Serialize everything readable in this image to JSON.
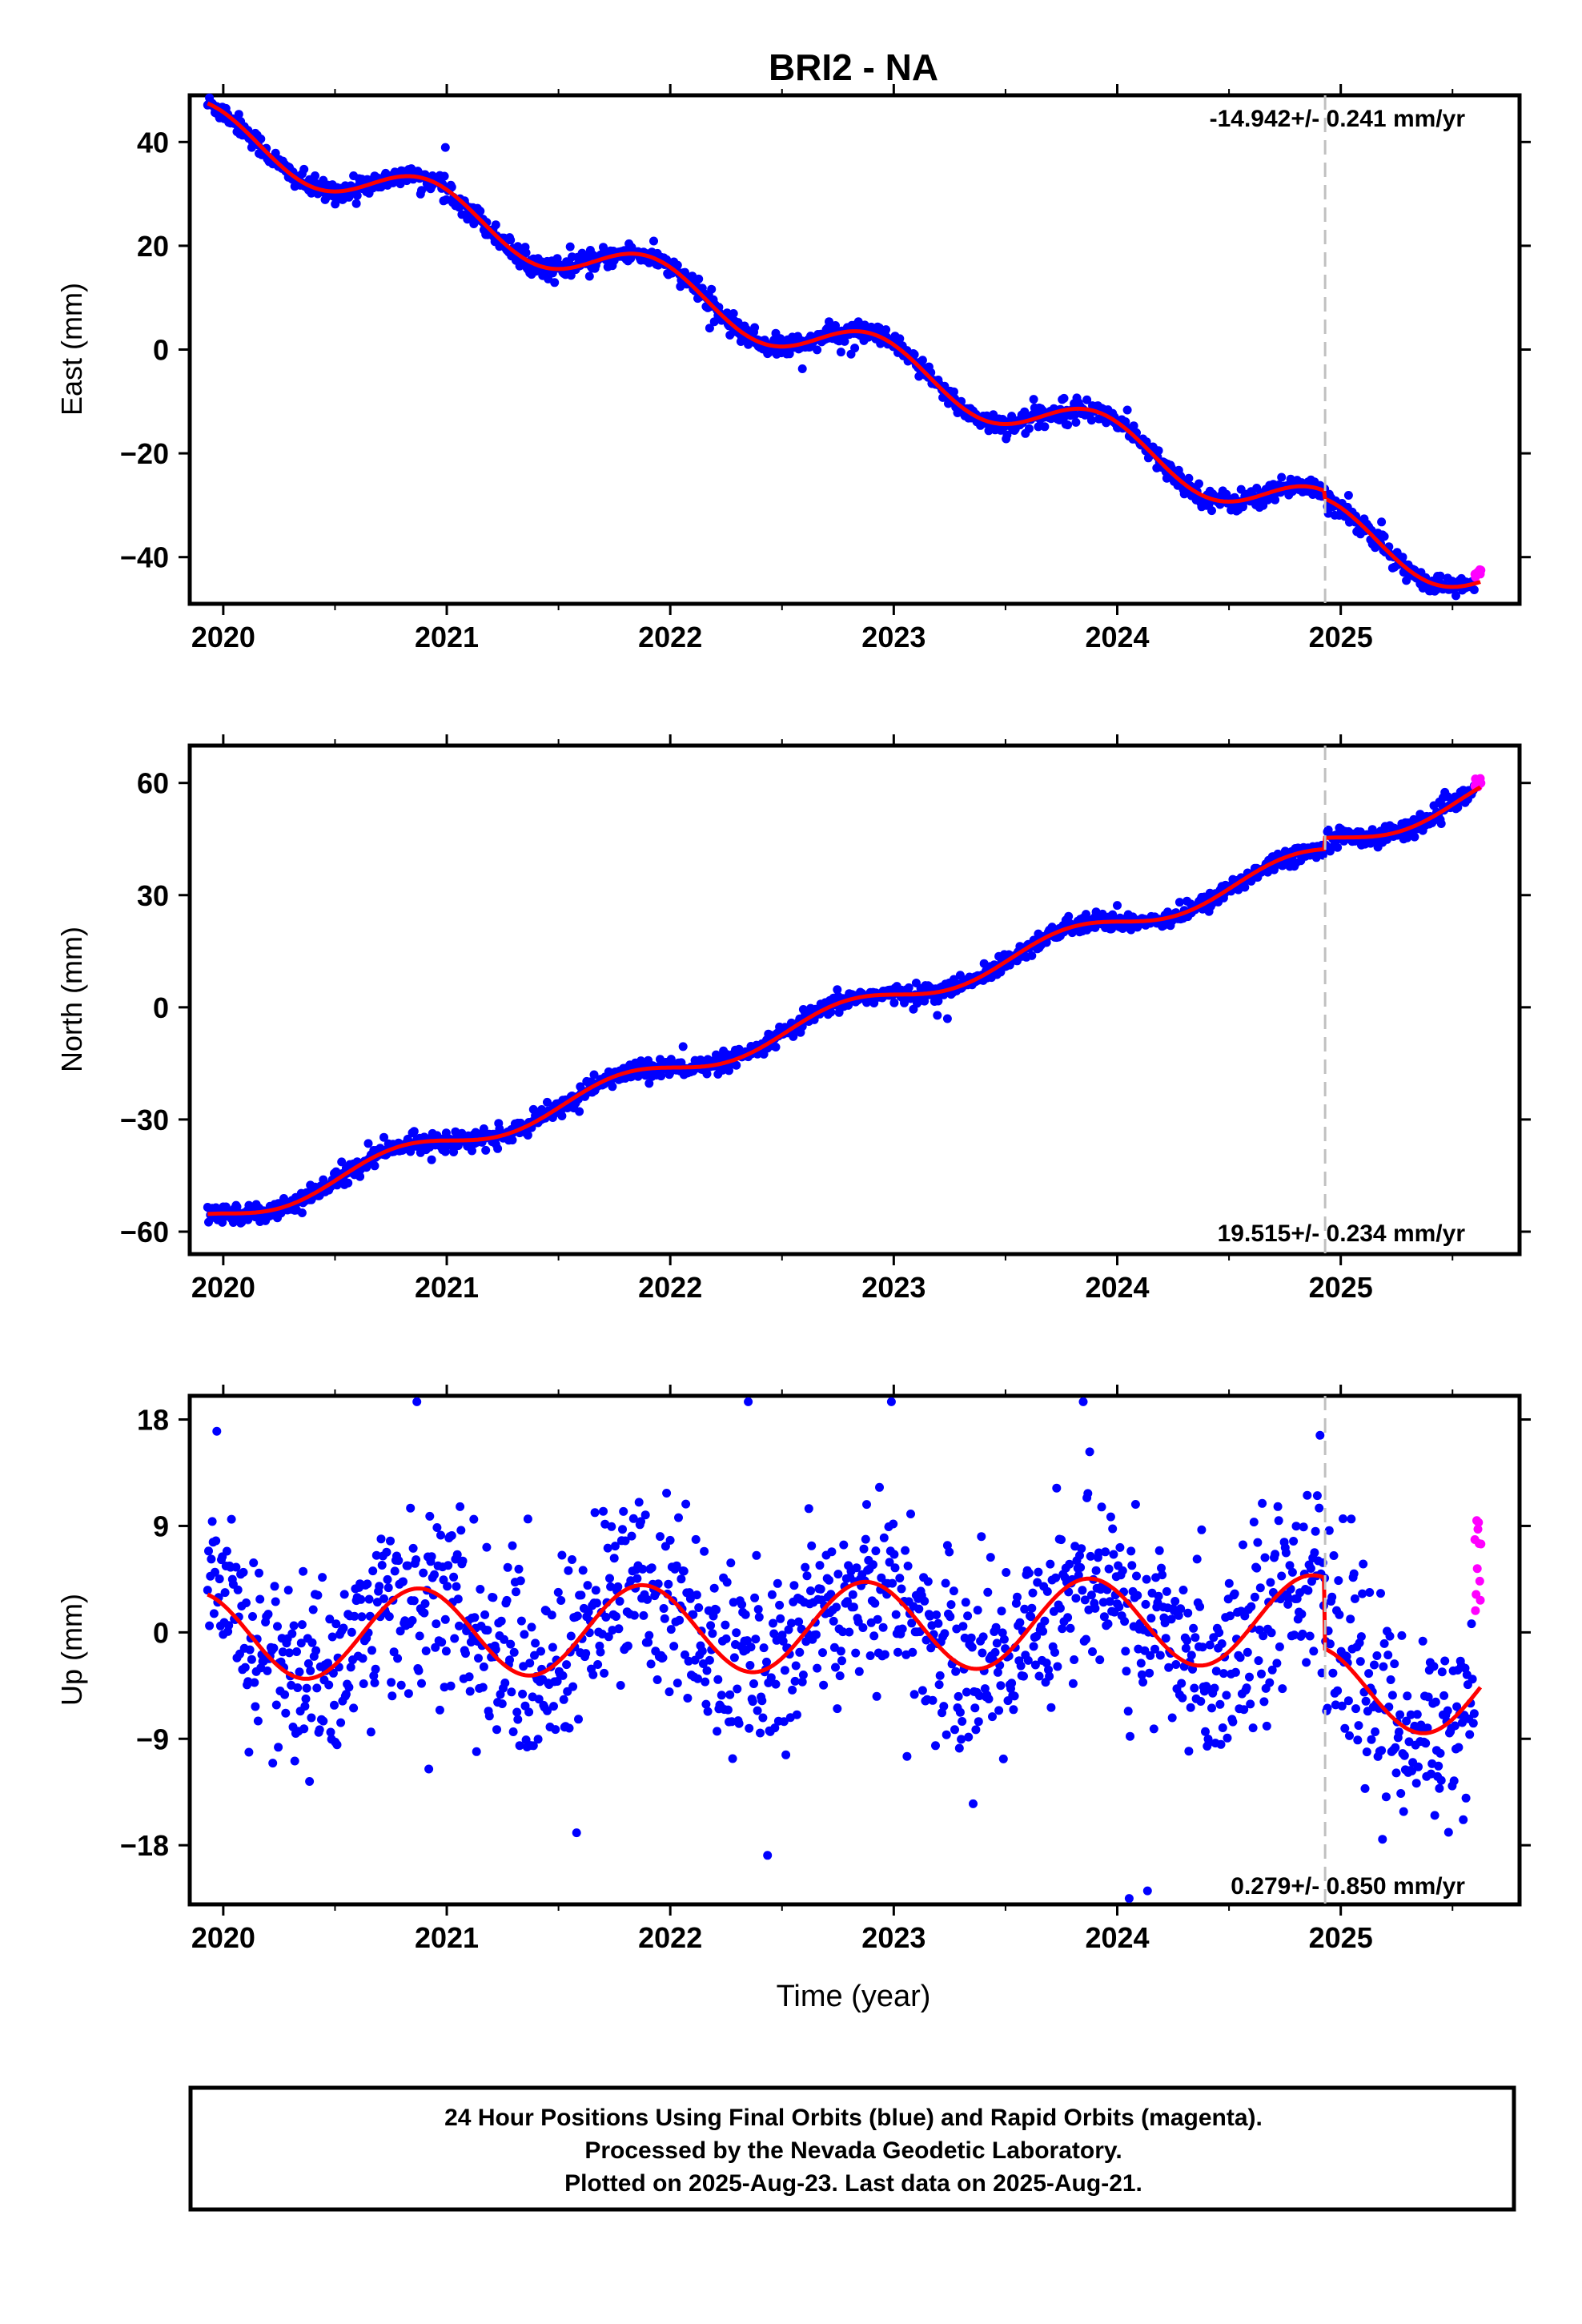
{
  "title": "BRI2 - NA",
  "time_axis_label": "Time (year)",
  "colors": {
    "final_orbits": "#0000ff",
    "rapid_orbits": "#ff00ff",
    "model": "#ff0000",
    "step_line": "#c0c0c0"
  },
  "footer": {
    "line1": "24 Hour Positions Using Final Orbits (blue) and Rapid Orbits (magenta).",
    "line2": "Processed by the Nevada Geodetic Laboratory.",
    "line3": "Plotted on 2025-Aug-23. Last data on 2025-Aug-21."
  },
  "chart_data": [
    {
      "type": "scatter",
      "component": "east",
      "ylabel": "East (mm)",
      "rate": "-14.942+/- 0.241 mm/yr",
      "xlim": [
        2019.85,
        2025.8
      ],
      "ylim": [
        -49,
        49
      ],
      "xticks": [
        2020,
        2021,
        2022,
        2023,
        2024,
        2025
      ],
      "yticks": [
        40,
        20,
        0,
        -20,
        -40
      ],
      "ytick_labels": [
        "40",
        "20",
        "0",
        "−20",
        "−40"
      ],
      "step_epoch": 2024.93,
      "data_start": 2019.93,
      "data_end": 2025.63,
      "rapid_start": 2025.6,
      "model": {
        "rate_mm_yr": -14.942,
        "offset_mm": 0,
        "ref_epoch": 2022.8,
        "annual_sin": -2.4,
        "annual_cos": 3.9,
        "semiannual_sin": 0.0,
        "semiannual_cos": 0.0,
        "step_mm": -1.5
      },
      "scatter_mm": 1.0
    },
    {
      "type": "scatter",
      "component": "north",
      "ylabel": "North (mm)",
      "rate": "19.515+/- 0.234 mm/yr",
      "xlim": [
        2019.85,
        2025.8
      ],
      "ylim": [
        -66,
        70
      ],
      "xticks": [
        2020,
        2021,
        2022,
        2023,
        2024,
        2025
      ],
      "yticks": [
        60,
        30,
        0,
        -30,
        -60
      ],
      "ytick_labels": [
        "60",
        "30",
        "0",
        "−30",
        "−60"
      ],
      "step_epoch": 2024.93,
      "data_start": 2019.93,
      "data_end": 2025.63,
      "rapid_start": 2025.6,
      "model": {
        "rate_mm_yr": 19.515,
        "offset_mm": -1,
        "ref_epoch": 2022.8,
        "annual_sin": -3.0,
        "annual_cos": 0.5,
        "semiannual_sin": 0.0,
        "semiannual_cos": 0.0,
        "step_mm": 3.0
      },
      "scatter_mm": 1.2
    },
    {
      "type": "scatter",
      "component": "up",
      "ylabel": "Up (mm)",
      "rate": "0.279+/- 0.850 mm/yr",
      "xlim": [
        2019.85,
        2025.8
      ],
      "ylim": [
        -23,
        20
      ],
      "xticks": [
        2020,
        2021,
        2022,
        2023,
        2024,
        2025
      ],
      "yticks": [
        18,
        9,
        0,
        -9,
        -18
      ],
      "ytick_labels": [
        "18",
        "9",
        "0",
        "−9",
        "−18"
      ],
      "step_epoch": 2024.93,
      "data_start": 2019.93,
      "data_end": 2025.63,
      "rapid_start": 2025.6,
      "model": {
        "rate_mm_yr": 0.279,
        "offset_mm": 0.5,
        "ref_epoch": 2022.8,
        "annual_sin": -2.7,
        "annual_cos": 2.6,
        "semiannual_sin": 0.0,
        "semiannual_cos": 0.0,
        "step_mm": -6.0
      },
      "scatter_mm": 4.0
    }
  ]
}
